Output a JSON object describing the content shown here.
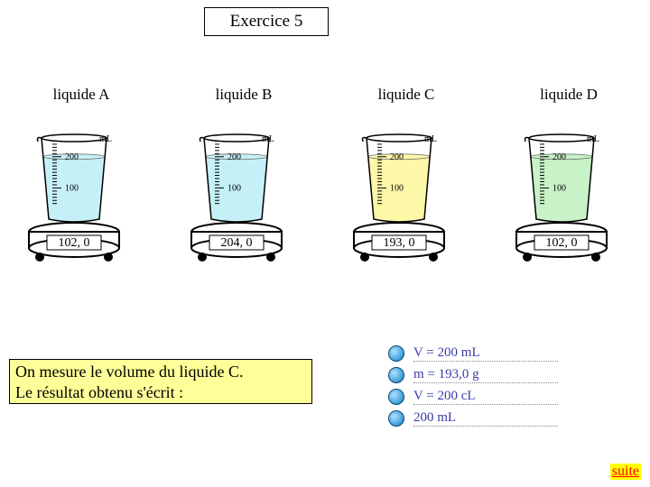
{
  "title": "Exercice 5",
  "liquids": [
    {
      "label": "liquide A",
      "fill_color": "#c6f0f7",
      "fill_level": 200,
      "readout": "102, 0"
    },
    {
      "label": "liquide B",
      "fill_color": "#c6f0f7",
      "fill_level": 200,
      "readout": "204, 0"
    },
    {
      "label": "liquide C",
      "fill_color": "#fdf7a8",
      "fill_level": 200,
      "readout": "193, 0"
    },
    {
      "label": "liquide D",
      "fill_color": "#c8f2c8",
      "fill_level": 200,
      "readout": "102, 0"
    }
  ],
  "beaker": {
    "unit_label": "mL",
    "tick_200": "200",
    "tick_100": "100",
    "ticks": [
      50,
      60,
      70,
      80,
      90,
      100,
      110,
      120,
      130,
      140,
      150,
      160,
      170,
      180,
      190,
      200,
      210,
      220,
      230,
      240,
      250
    ],
    "major_ticks": [
      100,
      200
    ],
    "outline_color": "#000000",
    "scale_bg": "#ffffff",
    "display_bg": "#ffffff",
    "display_fontsize": 14,
    "label_fontsize": 10
  },
  "prompt": {
    "line1": "On mesure le volume du liquide C.",
    "line2": "Le résultat obtenu s'écrit :",
    "bg": "#ffff99"
  },
  "answers": [
    "V = 200 mL",
    "m = 193,0 g",
    "V = 200 cL",
    "200 mL"
  ],
  "suite_label": "suite"
}
